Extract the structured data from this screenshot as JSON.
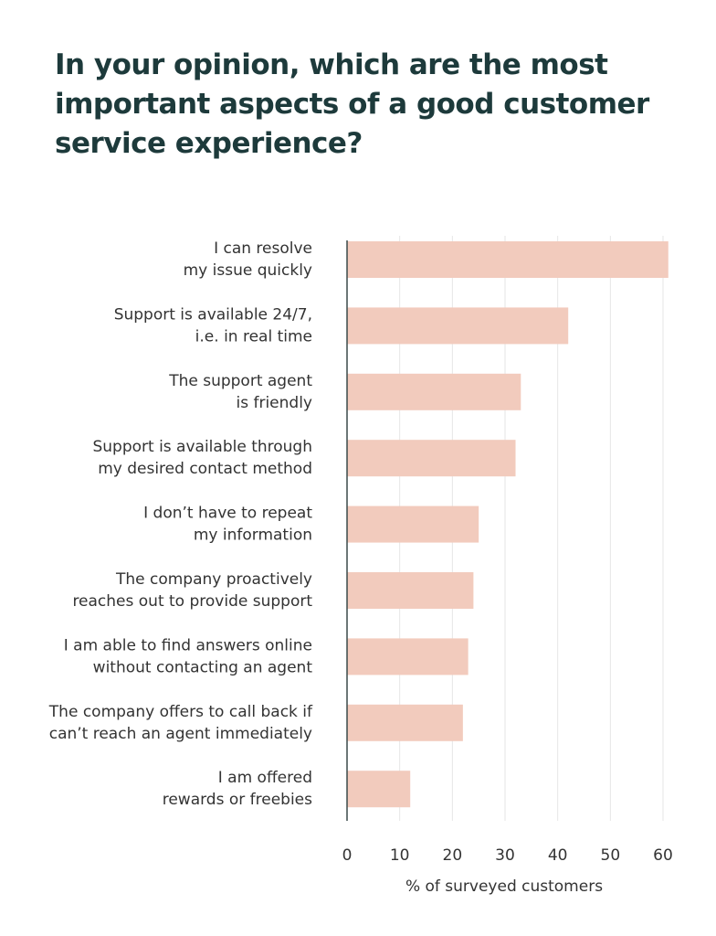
{
  "chart_data": {
    "type": "bar",
    "orientation": "horizontal",
    "title": [
      [
        "In your opinion, which are the most"
      ],
      [
        "important aspects of a ",
        "good",
        " customer"
      ],
      [
        "service experience?"
      ]
    ],
    "categories": [
      [
        "I can resolve",
        "my issue quickly"
      ],
      [
        "Support is available 24/7,",
        "i.e. in real time"
      ],
      [
        "The support agent",
        "is friendly"
      ],
      [
        "Support is available through",
        "my desired contact method"
      ],
      [
        "I don’t have to repeat",
        "my information"
      ],
      [
        "The company proactively",
        "reaches out to provide support"
      ],
      [
        "I am able to find answers online",
        "without contacting an agent"
      ],
      [
        "The company offers to call back if",
        "can’t reach an agent immediately"
      ],
      [
        "I am offered",
        "rewards or freebies"
      ]
    ],
    "values": [
      61,
      42,
      33,
      32,
      25,
      24,
      23,
      22,
      12
    ],
    "color": "#f2cbbd",
    "xlim": [
      0,
      62
    ],
    "xticks": [
      0,
      10,
      20,
      30,
      40,
      50,
      60
    ],
    "xlabel": "% of surveyed customers",
    "grid": true
  }
}
